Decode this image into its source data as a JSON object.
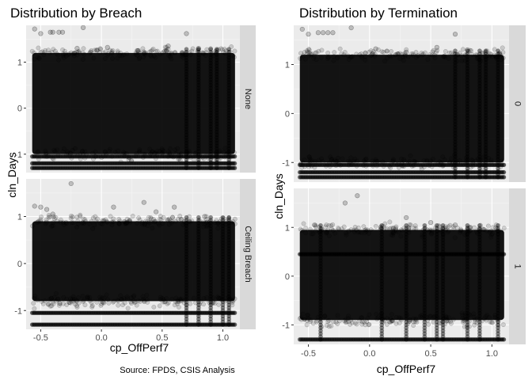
{
  "caption": "Source: FPDS, CSIS Analysis",
  "chart_data": [
    {
      "type": "scatter",
      "title": "Distribution by Breach",
      "xlabel": "cp_OffPerf7",
      "ylabel": "cln_Days",
      "xlim": [
        -0.62,
        1.14
      ],
      "x_ticks": [
        -0.5,
        0.0,
        0.5,
        1.0
      ],
      "x_tick_labels": [
        "-0.5",
        "0.0",
        "0.5",
        "1.0"
      ],
      "y_ticks": [
        -1,
        0,
        1
      ],
      "y_tick_labels": [
        "-1",
        "0",
        "1"
      ],
      "grid": true,
      "point_color": "#000000",
      "point_alpha": 0.15,
      "panel_background": "#ebebeb",
      "strip_background": "#d9d9d9",
      "facets": [
        {
          "strip": "None",
          "ylim": [
            -1.4,
            1.8
          ],
          "dense_band": {
            "x": [
              -0.57,
              1.1
            ],
            "y": [
              -1.0,
              1.2
            ]
          },
          "lines_y": [
            -1.05,
            -1.2,
            -1.3
          ],
          "dense_columns": [
            0.7,
            0.8,
            0.9,
            0.95,
            1.05
          ],
          "outliers": [
            {
              "x": -0.55,
              "y": 1.72
            },
            {
              "x": -0.5,
              "y": 1.62
            },
            {
              "x": -0.42,
              "y": 1.65
            },
            {
              "x": -0.4,
              "y": 1.65
            },
            {
              "x": -0.35,
              "y": 1.65
            },
            {
              "x": -0.32,
              "y": 1.65
            },
            {
              "x": -0.15,
              "y": 1.75
            },
            {
              "x": 0.05,
              "y": 1.32
            },
            {
              "x": 0.3,
              "y": 1.25
            },
            {
              "x": 0.55,
              "y": 1.35
            },
            {
              "x": 0.7,
              "y": 1.62
            },
            {
              "x": 0.8,
              "y": 1.3
            },
            {
              "x": 0.95,
              "y": 1.25
            },
            {
              "x": -0.2,
              "y": 1.3
            }
          ]
        },
        {
          "strip": "Ceiling Breach",
          "ylim": [
            -1.4,
            1.8
          ],
          "dense_band": {
            "x": [
              -0.57,
              1.1
            ],
            "y": [
              -0.8,
              0.9
            ]
          },
          "lines_y": [
            -1.05,
            -1.3
          ],
          "dense_columns": [
            0.7,
            0.8,
            0.9,
            1.0,
            1.05
          ],
          "outliers": [
            {
              "x": -0.55,
              "y": 1.22
            },
            {
              "x": -0.5,
              "y": 1.2
            },
            {
              "x": -0.45,
              "y": 1.15
            },
            {
              "x": -0.25,
              "y": 1.7
            },
            {
              "x": 0.1,
              "y": 1.2
            },
            {
              "x": 0.35,
              "y": 1.3
            },
            {
              "x": 0.45,
              "y": 1.1
            },
            {
              "x": 0.6,
              "y": 1.2
            },
            {
              "x": 0.85,
              "y": 1.0
            },
            {
              "x": -0.4,
              "y": 1.05
            }
          ]
        }
      ]
    },
    {
      "type": "scatter",
      "title": "Distribution by Termination",
      "xlabel": "cp_OffPerf7",
      "ylabel": "cln_Days",
      "xlim": [
        -0.62,
        1.14
      ],
      "x_ticks": [
        -0.5,
        0.0,
        0.5,
        1.0
      ],
      "x_tick_labels": [
        "-0.5",
        "0.0",
        "0.5",
        "1.0"
      ],
      "y_ticks": [
        -1,
        0,
        1
      ],
      "y_tick_labels": [
        "-1",
        "0",
        "1"
      ],
      "grid": true,
      "point_color": "#000000",
      "point_alpha": 0.15,
      "panel_background": "#ebebeb",
      "strip_background": "#d9d9d9",
      "facets": [
        {
          "strip": "0",
          "ylim": [
            -1.4,
            1.8
          ],
          "dense_band": {
            "x": [
              -0.57,
              1.1
            ],
            "y": [
              -1.0,
              1.2
            ]
          },
          "lines_y": [
            -1.05,
            -1.2,
            -1.3
          ],
          "dense_columns": [
            0.7,
            0.8,
            0.9,
            0.95,
            1.05
          ],
          "outliers": [
            {
              "x": -0.55,
              "y": 1.72
            },
            {
              "x": -0.5,
              "y": 1.62
            },
            {
              "x": -0.42,
              "y": 1.65
            },
            {
              "x": -0.38,
              "y": 1.65
            },
            {
              "x": -0.34,
              "y": 1.65
            },
            {
              "x": -0.3,
              "y": 1.65
            },
            {
              "x": -0.15,
              "y": 1.75
            },
            {
              "x": 0.05,
              "y": 1.32
            },
            {
              "x": 0.3,
              "y": 1.25
            },
            {
              "x": 0.55,
              "y": 1.35
            },
            {
              "x": 0.7,
              "y": 1.62
            },
            {
              "x": 0.8,
              "y": 1.3
            },
            {
              "x": 0.95,
              "y": 1.25
            }
          ]
        },
        {
          "strip": "1",
          "ylim": [
            -1.4,
            1.8
          ],
          "dense_band": {
            "x": [
              -0.57,
              1.1
            ],
            "y": [
              -0.9,
              0.95
            ]
          },
          "lines_y": [
            0.45,
            -1.3
          ],
          "dense_columns": [
            -0.4,
            0.1,
            0.3,
            0.45,
            0.55,
            0.6,
            0.8,
            0.9,
            1.05
          ],
          "outliers": [
            {
              "x": -0.1,
              "y": 1.65
            },
            {
              "x": -0.2,
              "y": 1.5
            },
            {
              "x": 0.3,
              "y": 1.2
            },
            {
              "x": 0.5,
              "y": 1.1
            },
            {
              "x": -0.45,
              "y": 1.05
            },
            {
              "x": 0.7,
              "y": 1.05
            },
            {
              "x": 0.9,
              "y": 0.95
            }
          ]
        }
      ]
    }
  ]
}
